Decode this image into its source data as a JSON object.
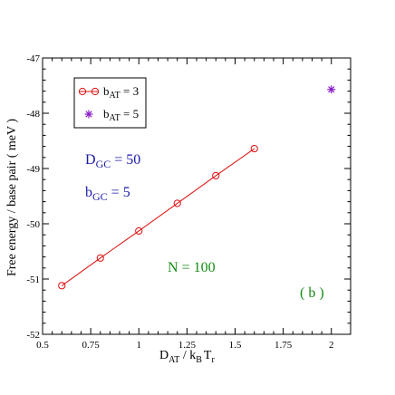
{
  "chart_data": {
    "type": "scatter",
    "title": "",
    "xlim": [
      0.5,
      2.1
    ],
    "ylim": [
      -52,
      -47
    ],
    "xticks": [
      0.5,
      0.75,
      1,
      1.25,
      1.5,
      1.75,
      2
    ],
    "xtick_labels": [
      "0.5",
      "0.75",
      "1",
      "1.25",
      "1.5",
      "1.75",
      "2"
    ],
    "yticks": [
      -52,
      -51,
      -50,
      -49,
      -48,
      -47
    ],
    "ytick_labels": [
      "-52",
      "-51",
      "-50",
      "-49",
      "-48",
      "-47"
    ],
    "xlabel": {
      "main": "D",
      "sub1": "AT",
      "mid": " / k",
      "sub2": "B",
      "tail": "T",
      "sub3": "r"
    },
    "ylabel": "Free energy / base pair ( meV )",
    "legend_position": "top-left",
    "series": [
      {
        "name": "b_AT = 3",
        "legend_main": "b",
        "legend_sub": "AT",
        "legend_tail": " = 3",
        "color": "#e01010",
        "marker": "circle",
        "line": true,
        "x": [
          0.6,
          0.8,
          1.0,
          1.2,
          1.4,
          1.6
        ],
        "y": [
          -51.12,
          -50.62,
          -50.13,
          -49.63,
          -49.13,
          -48.64
        ]
      },
      {
        "name": "b_AT = 5",
        "legend_main": "b",
        "legend_sub": "AT",
        "legend_tail": " = 5",
        "color": "#8a1cc8",
        "marker": "star",
        "line": false,
        "x": [
          2.0
        ],
        "y": [
          -47.57
        ]
      }
    ],
    "annotations": {
      "dgc": {
        "main": "D",
        "sub": "GC",
        "tail": " = 50"
      },
      "bgc": {
        "main": "b",
        "sub": "GC",
        "tail": " = 5"
      },
      "n": "N = 100",
      "panel": "( b )"
    }
  }
}
